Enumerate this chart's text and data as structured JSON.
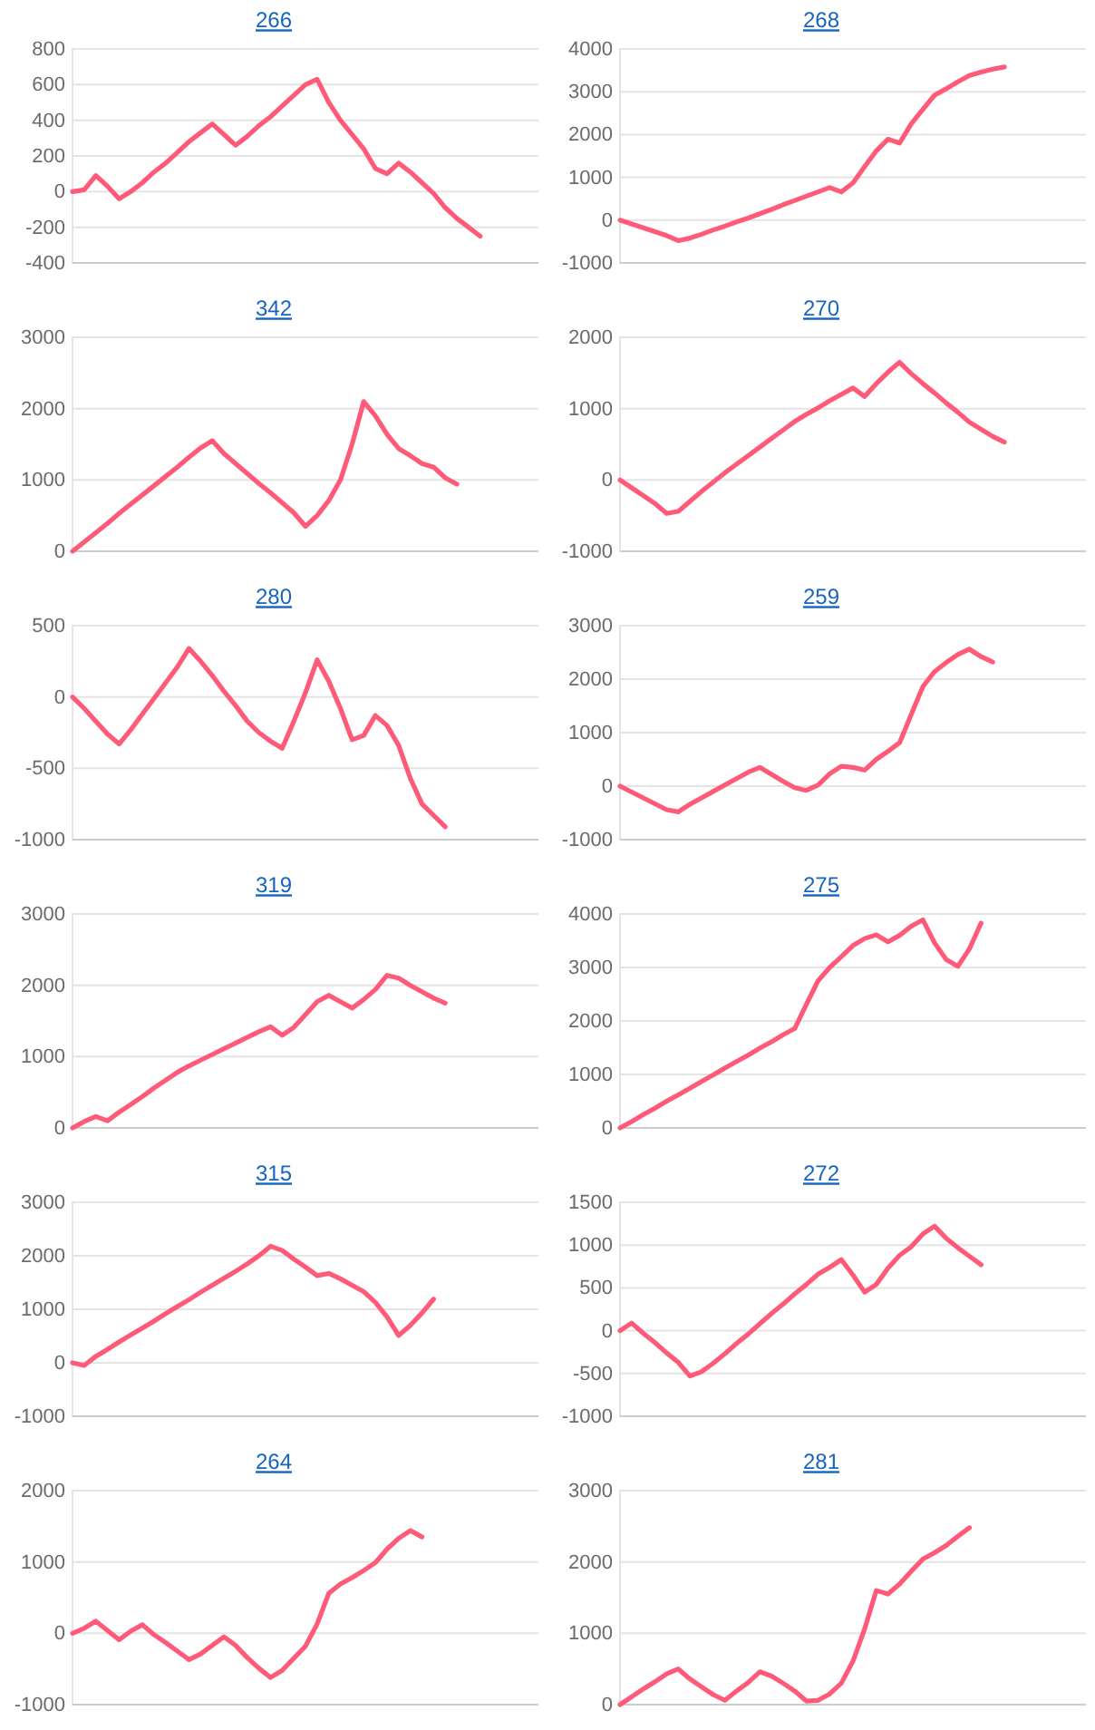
{
  "chart_data": [
    {
      "type": "line",
      "title": "266",
      "categories": [
        null,
        null,
        null,
        null,
        null,
        null,
        null,
        null,
        null,
        null,
        null,
        null,
        null,
        null,
        null,
        null,
        null,
        null,
        null,
        null,
        null,
        null,
        null,
        null,
        null,
        null,
        null,
        null,
        null,
        null,
        null,
        null,
        null,
        null,
        null,
        null,
        null,
        null,
        null,
        null,
        null
      ],
      "values": [
        0,
        10,
        90,
        30,
        -40,
        0,
        50,
        110,
        160,
        220,
        280,
        330,
        380,
        320,
        260,
        310,
        370,
        420,
        480,
        540,
        600,
        630,
        500,
        400,
        320,
        240,
        130,
        100,
        160,
        110,
        50,
        -10,
        -90,
        -150,
        -200,
        -250,
        null,
        null,
        null,
        null,
        null
      ],
      "color": "#ff5a78",
      "ylim": [
        -400,
        800
      ],
      "yticks": [
        -400,
        -200,
        0,
        200,
        400,
        600,
        800
      ],
      "grid": "y",
      "tick_labels": "y"
    },
    {
      "type": "line",
      "title": "268",
      "categories": [
        null,
        null,
        null,
        null,
        null,
        null,
        null,
        null,
        null,
        null,
        null,
        null,
        null,
        null,
        null,
        null,
        null,
        null,
        null,
        null,
        null,
        null,
        null,
        null,
        null,
        null,
        null,
        null,
        null,
        null,
        null,
        null,
        null,
        null,
        null,
        null,
        null,
        null,
        null,
        null,
        null
      ],
      "values": [
        0,
        -90,
        -180,
        -270,
        -360,
        -480,
        -420,
        -330,
        -230,
        -140,
        -40,
        50,
        150,
        250,
        360,
        460,
        560,
        660,
        760,
        660,
        870,
        1250,
        1620,
        1890,
        1800,
        2250,
        2590,
        2920,
        3070,
        3230,
        3380,
        3460,
        3530,
        3580,
        null,
        null,
        null,
        null,
        null,
        null,
        null
      ],
      "color": "#ff5a78",
      "ylim": [
        -1000,
        4000
      ],
      "yticks": [
        -1000,
        0,
        1000,
        2000,
        3000,
        4000
      ],
      "grid": "y",
      "tick_labels": "y"
    },
    {
      "type": "line",
      "title": "342",
      "categories": [
        null,
        null,
        null,
        null,
        null,
        null,
        null,
        null,
        null,
        null,
        null,
        null,
        null,
        null,
        null,
        null,
        null,
        null,
        null,
        null,
        null,
        null,
        null,
        null,
        null,
        null,
        null,
        null,
        null,
        null,
        null,
        null,
        null,
        null,
        null,
        null,
        null,
        null,
        null,
        null,
        null
      ],
      "values": [
        0,
        130,
        260,
        390,
        530,
        660,
        790,
        920,
        1050,
        1180,
        1320,
        1450,
        1550,
        1370,
        1230,
        1090,
        950,
        820,
        680,
        540,
        350,
        500,
        710,
        1000,
        1500,
        2100,
        1900,
        1640,
        1440,
        1340,
        1230,
        1180,
        1030,
        940,
        null,
        null,
        null,
        null,
        null,
        null,
        null
      ],
      "color": "#ff5a78",
      "ylim": [
        0,
        3000
      ],
      "yticks": [
        0,
        1000,
        2000,
        3000
      ],
      "grid": "y",
      "tick_labels": "y"
    },
    {
      "type": "line",
      "title": "270",
      "categories": [
        null,
        null,
        null,
        null,
        null,
        null,
        null,
        null,
        null,
        null,
        null,
        null,
        null,
        null,
        null,
        null,
        null,
        null,
        null,
        null,
        null,
        null,
        null,
        null,
        null,
        null,
        null,
        null,
        null,
        null,
        null,
        null,
        null,
        null,
        null,
        null,
        null,
        null,
        null,
        null,
        null
      ],
      "values": [
        0,
        -110,
        -220,
        -330,
        -470,
        -440,
        -300,
        -160,
        -30,
        100,
        220,
        340,
        460,
        580,
        700,
        820,
        920,
        1010,
        1110,
        1200,
        1290,
        1170,
        1350,
        1510,
        1650,
        1490,
        1350,
        1220,
        1080,
        950,
        810,
        710,
        610,
        530,
        null,
        null,
        null,
        null,
        null,
        null,
        null
      ],
      "color": "#ff5a78",
      "ylim": [
        -1000,
        2000
      ],
      "yticks": [
        -1000,
        0,
        1000,
        2000
      ],
      "grid": "y",
      "tick_labels": "y"
    },
    {
      "type": "line",
      "title": "280",
      "categories": [
        null,
        null,
        null,
        null,
        null,
        null,
        null,
        null,
        null,
        null,
        null,
        null,
        null,
        null,
        null,
        null,
        null,
        null,
        null,
        null,
        null,
        null,
        null,
        null,
        null,
        null,
        null,
        null,
        null,
        null,
        null,
        null,
        null,
        null,
        null,
        null,
        null,
        null,
        null,
        null,
        null
      ],
      "values": [
        0,
        -80,
        -170,
        -260,
        -330,
        -230,
        -120,
        -10,
        100,
        210,
        340,
        250,
        150,
        40,
        -60,
        -170,
        -250,
        -310,
        -360,
        -170,
        30,
        260,
        110,
        -80,
        -300,
        -270,
        -130,
        -200,
        -340,
        -570,
        -750,
        -830,
        -910,
        null,
        null,
        null,
        null,
        null,
        null,
        null,
        null
      ],
      "color": "#ff5a78",
      "ylim": [
        -1000,
        500
      ],
      "yticks": [
        -1000,
        -500,
        0,
        500
      ],
      "grid": "y",
      "tick_labels": "y"
    },
    {
      "type": "line",
      "title": "259",
      "categories": [
        null,
        null,
        null,
        null,
        null,
        null,
        null,
        null,
        null,
        null,
        null,
        null,
        null,
        null,
        null,
        null,
        null,
        null,
        null,
        null,
        null,
        null,
        null,
        null,
        null,
        null,
        null,
        null,
        null,
        null,
        null,
        null,
        null,
        null,
        null,
        null,
        null,
        null,
        null,
        null,
        null
      ],
      "values": [
        0,
        -110,
        -220,
        -330,
        -440,
        -480,
        -340,
        -220,
        -100,
        20,
        140,
        260,
        350,
        220,
        90,
        -30,
        -80,
        20,
        230,
        370,
        350,
        300,
        500,
        650,
        810,
        1340,
        1860,
        2140,
        2310,
        2460,
        2560,
        2420,
        2320,
        null,
        null,
        null,
        null,
        null,
        null,
        null,
        null
      ],
      "color": "#ff5a78",
      "ylim": [
        -1000,
        3000
      ],
      "yticks": [
        -1000,
        0,
        1000,
        2000,
        3000
      ],
      "grid": "y",
      "tick_labels": "y"
    },
    {
      "type": "line",
      "title": "319",
      "categories": [
        null,
        null,
        null,
        null,
        null,
        null,
        null,
        null,
        null,
        null,
        null,
        null,
        null,
        null,
        null,
        null,
        null,
        null,
        null,
        null,
        null,
        null,
        null,
        null,
        null,
        null,
        null,
        null,
        null,
        null,
        null,
        null,
        null,
        null,
        null,
        null,
        null,
        null,
        null,
        null,
        null
      ],
      "values": [
        0,
        90,
        160,
        100,
        220,
        330,
        440,
        560,
        670,
        780,
        870,
        950,
        1030,
        1110,
        1190,
        1270,
        1350,
        1420,
        1300,
        1410,
        1590,
        1770,
        1860,
        1770,
        1680,
        1800,
        1940,
        2140,
        2100,
        2000,
        1910,
        1820,
        1750,
        null,
        null,
        null,
        null,
        null,
        null,
        null,
        null
      ],
      "color": "#ff5a78",
      "ylim": [
        0,
        3000
      ],
      "yticks": [
        0,
        1000,
        2000,
        3000
      ],
      "grid": "y",
      "tick_labels": "y"
    },
    {
      "type": "line",
      "title": "275",
      "categories": [
        null,
        null,
        null,
        null,
        null,
        null,
        null,
        null,
        null,
        null,
        null,
        null,
        null,
        null,
        null,
        null,
        null,
        null,
        null,
        null,
        null,
        null,
        null,
        null,
        null,
        null,
        null,
        null,
        null,
        null,
        null,
        null,
        null,
        null,
        null,
        null,
        null,
        null,
        null,
        null,
        null
      ],
      "values": [
        0,
        120,
        250,
        370,
        500,
        620,
        740,
        870,
        990,
        1120,
        1240,
        1360,
        1490,
        1610,
        1740,
        1860,
        2310,
        2750,
        3000,
        3200,
        3410,
        3540,
        3610,
        3480,
        3600,
        3770,
        3890,
        3460,
        3150,
        3020,
        3350,
        3830,
        null,
        null,
        null,
        null,
        null,
        null,
        null,
        null,
        null
      ],
      "color": "#ff5a78",
      "ylim": [
        0,
        4000
      ],
      "yticks": [
        0,
        1000,
        2000,
        3000,
        4000
      ],
      "grid": "y",
      "tick_labels": "y"
    },
    {
      "type": "line",
      "title": "315",
      "categories": [
        null,
        null,
        null,
        null,
        null,
        null,
        null,
        null,
        null,
        null,
        null,
        null,
        null,
        null,
        null,
        null,
        null,
        null,
        null,
        null,
        null,
        null,
        null,
        null,
        null,
        null,
        null,
        null,
        null,
        null,
        null,
        null,
        null,
        null,
        null,
        null,
        null,
        null,
        null,
        null,
        null
      ],
      "values": [
        0,
        -50,
        120,
        250,
        390,
        520,
        650,
        780,
        920,
        1050,
        1180,
        1320,
        1450,
        1580,
        1710,
        1850,
        2000,
        2180,
        2100,
        1940,
        1790,
        1630,
        1670,
        1570,
        1450,
        1330,
        1130,
        860,
        510,
        700,
        930,
        1190,
        null,
        null,
        null,
        null,
        null,
        null,
        null,
        null,
        null
      ],
      "color": "#ff5a78",
      "ylim": [
        -1000,
        3000
      ],
      "yticks": [
        -1000,
        0,
        1000,
        2000,
        3000
      ],
      "grid": "y",
      "tick_labels": "y"
    },
    {
      "type": "line",
      "title": "272",
      "categories": [
        null,
        null,
        null,
        null,
        null,
        null,
        null,
        null,
        null,
        null,
        null,
        null,
        null,
        null,
        null,
        null,
        null,
        null,
        null,
        null,
        null,
        null,
        null,
        null,
        null,
        null,
        null,
        null,
        null,
        null,
        null,
        null,
        null,
        null,
        null,
        null,
        null,
        null,
        null,
        null,
        null
      ],
      "values": [
        0,
        90,
        -30,
        -140,
        -260,
        -370,
        -530,
        -480,
        -380,
        -270,
        -150,
        -40,
        80,
        200,
        310,
        430,
        540,
        660,
        740,
        830,
        650,
        450,
        540,
        730,
        880,
        980,
        1130,
        1220,
        1080,
        970,
        870,
        770,
        null,
        null,
        null,
        null,
        null,
        null,
        null,
        null,
        null
      ],
      "color": "#ff5a78",
      "ylim": [
        -1000,
        1500
      ],
      "yticks": [
        -1000,
        -500,
        0,
        500,
        1000,
        1500
      ],
      "grid": "y",
      "tick_labels": "y"
    },
    {
      "type": "line",
      "title": "264",
      "categories": [
        null,
        null,
        null,
        null,
        null,
        null,
        null,
        null,
        null,
        null,
        null,
        null,
        null,
        null,
        null,
        null,
        null,
        null,
        null,
        null,
        null,
        null,
        null,
        null,
        null,
        null,
        null,
        null,
        null,
        null,
        null,
        null,
        null,
        null,
        null,
        null,
        null,
        null,
        null,
        null,
        null
      ],
      "values": [
        0,
        70,
        170,
        40,
        -90,
        30,
        120,
        -20,
        -130,
        -250,
        -370,
        -290,
        -170,
        -50,
        -170,
        -340,
        -490,
        -620,
        -520,
        -350,
        -180,
        130,
        560,
        690,
        780,
        880,
        990,
        1180,
        1330,
        1440,
        1350,
        null,
        null,
        null,
        null,
        null,
        null,
        null,
        null,
        null,
        null
      ],
      "color": "#ff5a78",
      "ylim": [
        -1000,
        2000
      ],
      "yticks": [
        -1000,
        0,
        1000,
        2000
      ],
      "grid": "y",
      "tick_labels": "y"
    },
    {
      "type": "line",
      "title": "281",
      "categories": [
        null,
        null,
        null,
        null,
        null,
        null,
        null,
        null,
        null,
        null,
        null,
        null,
        null,
        null,
        null,
        null,
        null,
        null,
        null,
        null,
        null,
        null,
        null,
        null,
        null,
        null,
        null,
        null,
        null,
        null,
        null,
        null,
        null,
        null,
        null,
        null,
        null,
        null,
        null,
        null,
        null
      ],
      "values": [
        0,
        110,
        220,
        320,
        430,
        500,
        360,
        250,
        140,
        60,
        190,
        310,
        460,
        400,
        300,
        190,
        50,
        60,
        150,
        300,
        610,
        1060,
        1600,
        1550,
        1690,
        1870,
        2040,
        2130,
        2230,
        2360,
        2480,
        null,
        null,
        null,
        null,
        null,
        null,
        null,
        null,
        null,
        null
      ],
      "color": "#ff5a78",
      "ylim": [
        0,
        3000
      ],
      "yticks": [
        0,
        1000,
        2000,
        3000
      ],
      "grid": "y",
      "tick_labels": "y"
    }
  ]
}
